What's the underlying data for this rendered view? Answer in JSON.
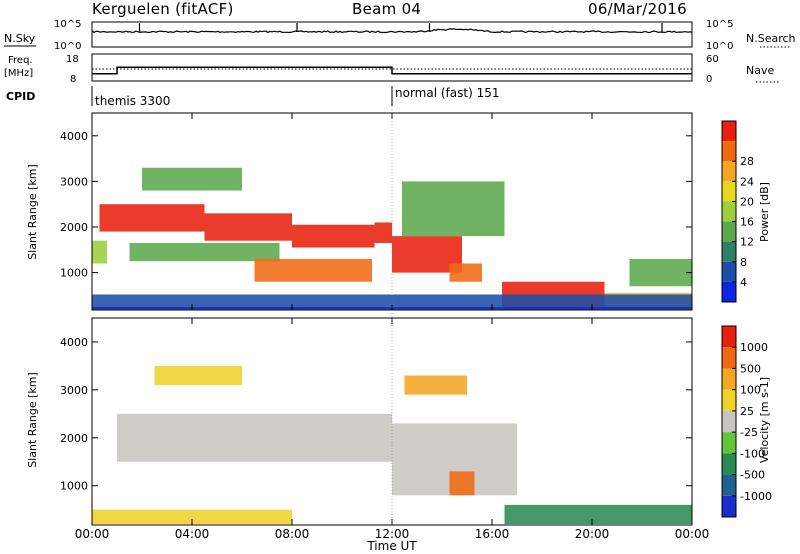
{
  "header": {
    "station": "Kerguelen (fitACF)",
    "beam": "Beam 04",
    "date": "06/Mar/2016"
  },
  "status_panels": {
    "nsky_label": "N.Sky",
    "nsky_ticks": [
      "10^5",
      "10^0"
    ],
    "nsearch_label": "N.Search",
    "nsearch_ticks": [
      "10^5",
      "10^0"
    ],
    "freq_label": "Freq.",
    "freq_unit": "[MHz]",
    "freq_ticks": [
      "18",
      "8"
    ],
    "nave_label": "Nave",
    "nave_ticks": [
      "60",
      "0"
    ],
    "cpid_label": "CPID",
    "cpid_segments": [
      {
        "name": "themis 3300",
        "start_h": 0,
        "end_h": 12
      },
      {
        "name": "normal (fast) 151",
        "start_h": 12,
        "end_h": 24
      }
    ],
    "freq_steps": [
      {
        "start_h": 0,
        "end_h": 1,
        "mhz": 10.7
      },
      {
        "start_h": 1,
        "end_h": 12,
        "mhz": 13.1
      },
      {
        "start_h": 12,
        "end_h": 24,
        "mhz": 10.7
      }
    ]
  },
  "x_axis": {
    "label": "Time UT",
    "ticks": [
      "00:00",
      "04:00",
      "08:00",
      "12:00",
      "16:00",
      "20:00",
      "00:00"
    ],
    "range_hours": [
      0,
      24
    ]
  },
  "chart_data": [
    {
      "type": "heatmap",
      "panel": "power",
      "ylabel": "Slant Range [km]",
      "yticks": [
        "1000",
        "2000",
        "3000",
        "4000"
      ],
      "ylim_km": [
        180,
        4500
      ],
      "colorbar_label": "Power [dB]",
      "colorbar_ticks": [
        "4",
        "8",
        "12",
        "16",
        "20",
        "24",
        "28"
      ],
      "colorbar_colors": [
        "#0b26e6",
        "#1d4fa8",
        "#2f7f67",
        "#5ca94d",
        "#9bcf3b",
        "#e8d71f",
        "#f5a623",
        "#f06a14",
        "#e8210e"
      ],
      "bands": [
        {
          "t0": 0.0,
          "t1": 0.6,
          "r0": 1200,
          "r1": 1700,
          "level": 4
        },
        {
          "t0": 0.3,
          "t1": 4.5,
          "r0": 1900,
          "r1": 2500,
          "level": 8
        },
        {
          "t0": 4.5,
          "t1": 8.0,
          "r0": 1700,
          "r1": 2300,
          "level": 8
        },
        {
          "t0": 8.0,
          "t1": 11.3,
          "r0": 1550,
          "r1": 2050,
          "level": 8
        },
        {
          "t0": 11.3,
          "t1": 12.0,
          "r0": 1650,
          "r1": 2100,
          "level": 8
        },
        {
          "t0": 1.5,
          "t1": 7.5,
          "r0": 1250,
          "r1": 1650,
          "level": 3
        },
        {
          "t0": 6.5,
          "t1": 11.2,
          "r0": 800,
          "r1": 1300,
          "level": 7
        },
        {
          "t0": 12.0,
          "t1": 14.8,
          "r0": 1000,
          "r1": 1800,
          "level": 8
        },
        {
          "t0": 14.3,
          "t1": 15.6,
          "r0": 800,
          "r1": 1200,
          "level": 7
        },
        {
          "t0": 16.4,
          "t1": 20.5,
          "r0": 200,
          "r1": 800,
          "level": 8
        },
        {
          "t0": 20.5,
          "t1": 24.0,
          "r0": 200,
          "r1": 550,
          "level": 6
        },
        {
          "t0": 0.0,
          "t1": 24.0,
          "r0": 190,
          "r1": 520,
          "level": 1
        },
        {
          "t0": 2.0,
          "t1": 6.0,
          "r0": 2800,
          "r1": 3300,
          "level": 3
        },
        {
          "t0": 12.4,
          "t1": 16.5,
          "r0": 1800,
          "r1": 3000,
          "level": 3
        },
        {
          "t0": 21.5,
          "t1": 24.0,
          "r0": 700,
          "r1": 1300,
          "level": 3
        }
      ]
    },
    {
      "type": "heatmap",
      "panel": "velocity",
      "ylabel": "Slant Range [km]",
      "yticks": [
        "1000",
        "2000",
        "3000",
        "4000"
      ],
      "ylim_km": [
        180,
        4500
      ],
      "colorbar_label": "Velocity [m s-1]",
      "colorbar_ticks": [
        "1000",
        "500",
        "100",
        "25",
        "-25",
        "-100",
        "-500",
        "-1000"
      ],
      "colorbar_colors": [
        "#1a2fc9",
        "#215f8f",
        "#2b8a52",
        "#64c43a",
        "#c6c5bf",
        "#f0d22a",
        "#f5a623",
        "#f06a14",
        "#e8210e"
      ],
      "bands": [
        {
          "t0": 1.0,
          "t1": 12.0,
          "r0": 1500,
          "r1": 2500,
          "level": 4
        },
        {
          "t0": 12.0,
          "t1": 17.0,
          "r0": 800,
          "r1": 2300,
          "level": 4
        },
        {
          "t0": 14.3,
          "t1": 15.3,
          "r0": 800,
          "r1": 1300,
          "level": 7
        },
        {
          "t0": 16.5,
          "t1": 24.0,
          "r0": 200,
          "r1": 600,
          "level": 2
        },
        {
          "t0": 0.0,
          "t1": 8.0,
          "r0": 200,
          "r1": 500,
          "level": 5
        },
        {
          "t0": 2.5,
          "t1": 6.0,
          "r0": 3100,
          "r1": 3500,
          "level": 5
        },
        {
          "t0": 12.5,
          "t1": 15.0,
          "r0": 2900,
          "r1": 3300,
          "level": 6
        }
      ]
    }
  ]
}
